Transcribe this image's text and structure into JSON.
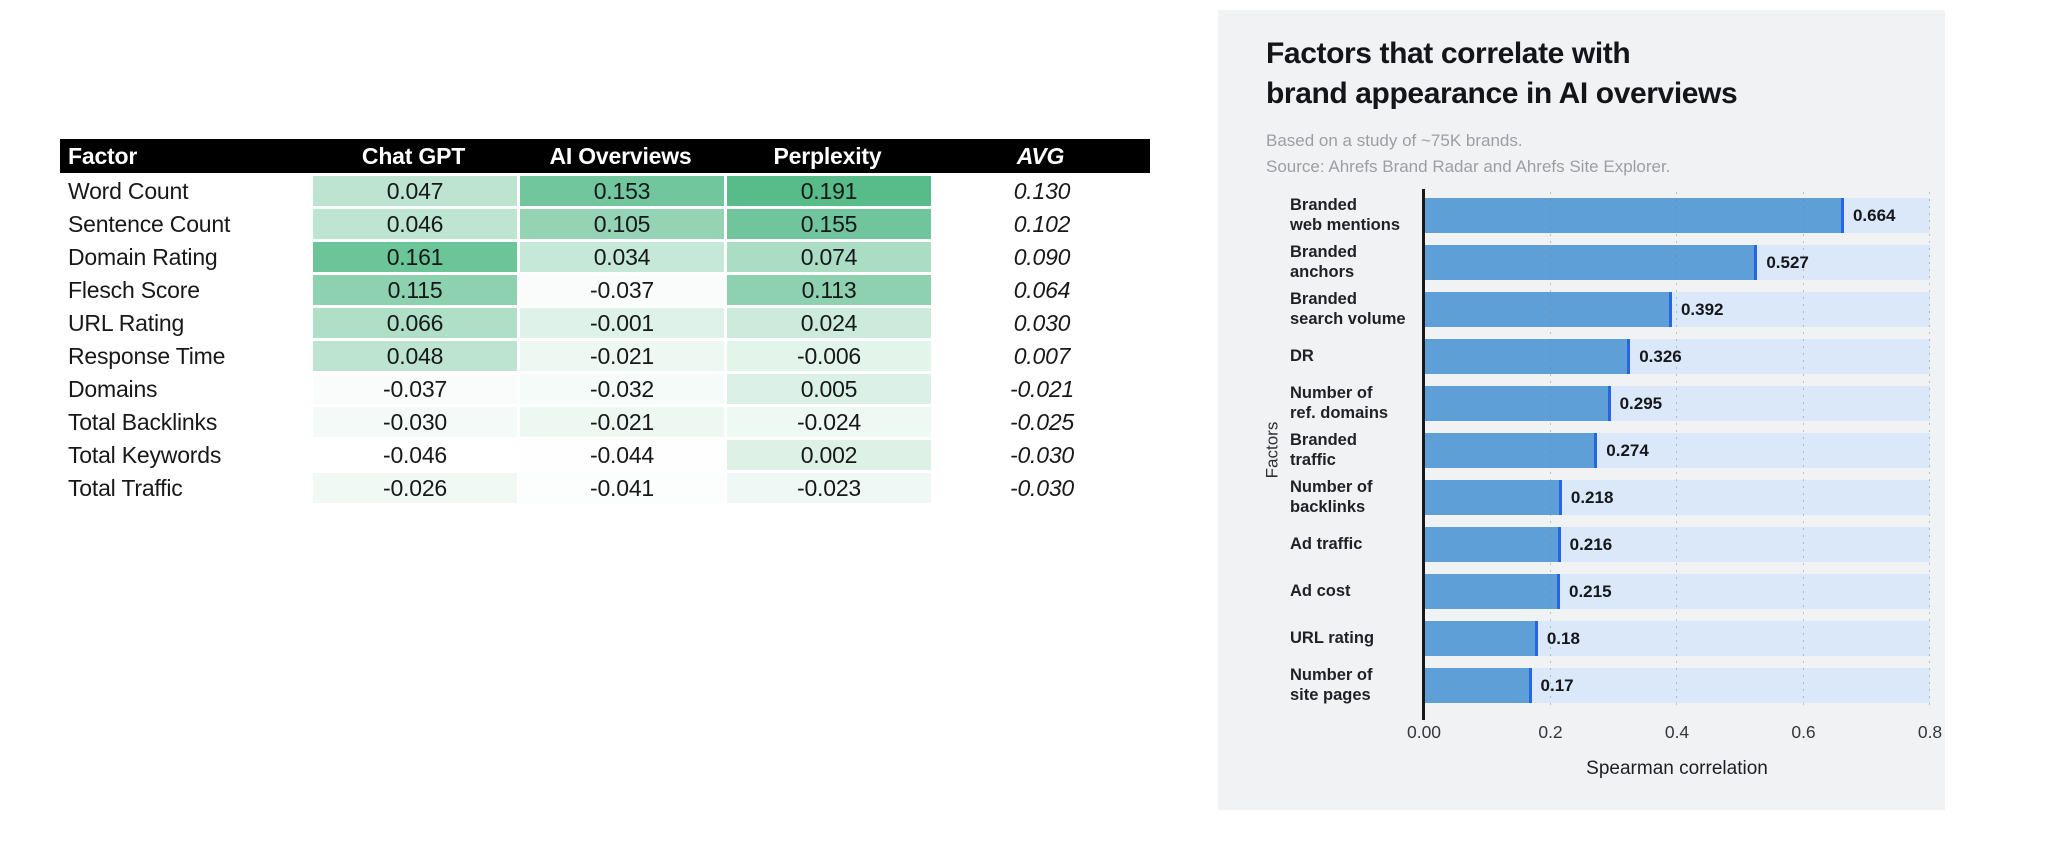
{
  "table": {
    "header": [
      "Factor",
      "Chat GPT",
      "AI Overviews",
      "Perplexity",
      "AVG"
    ],
    "rows": [
      [
        "Word Count",
        "0.047",
        "0.153",
        "0.191",
        "0.130"
      ],
      [
        "Sentence Count",
        "0.046",
        "0.105",
        "0.155",
        "0.102"
      ],
      [
        "Domain Rating",
        "0.161",
        "0.034",
        "0.074",
        "0.090"
      ],
      [
        "Flesch Score",
        "0.115",
        "-0.037",
        "0.113",
        "0.064"
      ],
      [
        "URL Rating",
        "0.066",
        "-0.001",
        "0.024",
        "0.030"
      ],
      [
        "Response Time",
        "0.048",
        "-0.021",
        "-0.006",
        "0.007"
      ],
      [
        "Domains",
        "-0.037",
        "-0.032",
        "0.005",
        "-0.021"
      ],
      [
        "Total Backlinks",
        "-0.030",
        "-0.021",
        "-0.024",
        "-0.025"
      ],
      [
        "Total Keywords",
        "-0.046",
        "-0.044",
        "0.002",
        "-0.030"
      ],
      [
        "Total Traffic",
        "-0.026",
        "-0.041",
        "-0.023",
        "-0.030"
      ]
    ],
    "heatmap": {
      "min": -0.046,
      "max": 0.191,
      "low_color": "#ffffff",
      "high_color": "#57bb8a"
    }
  },
  "chart": {
    "title_lines": [
      "Factors that correlate with",
      "brand appearance in AI overviews"
    ],
    "subtitle_lines": [
      "Based on a study of ~75K brands.",
      "Source: Ahrefs Brand Radar and Ahrefs Site Explorer."
    ],
    "ylabel": "Factors",
    "xlabel": "Spearman correlation",
    "xticks": [
      "0.00",
      "0.2",
      "0.4",
      "0.6",
      "0.8"
    ],
    "xmax": 0.8,
    "bars": [
      {
        "label_lines": [
          "Branded",
          "web mentions"
        ],
        "value": 0.664,
        "display": "0.664"
      },
      {
        "label_lines": [
          "Branded",
          "anchors"
        ],
        "value": 0.527,
        "display": "0.527"
      },
      {
        "label_lines": [
          "Branded",
          "search volume"
        ],
        "value": 0.392,
        "display": "0.392"
      },
      {
        "label_lines": [
          "DR"
        ],
        "value": 0.326,
        "display": "0.326"
      },
      {
        "label_lines": [
          "Number of",
          "ref. domains"
        ],
        "value": 0.295,
        "display": "0.295"
      },
      {
        "label_lines": [
          "Branded",
          "traffic"
        ],
        "value": 0.274,
        "display": "0.274"
      },
      {
        "label_lines": [
          "Number of",
          "backlinks"
        ],
        "value": 0.218,
        "display": "0.218"
      },
      {
        "label_lines": [
          "Ad traffic"
        ],
        "value": 0.216,
        "display": "0.216"
      },
      {
        "label_lines": [
          "Ad cost"
        ],
        "value": 0.215,
        "display": "0.215"
      },
      {
        "label_lines": [
          "URL rating"
        ],
        "value": 0.18,
        "display": "0.18"
      },
      {
        "label_lines": [
          "Number of",
          "site pages"
        ],
        "value": 0.17,
        "display": "0.17"
      }
    ],
    "colors": {
      "panel_bg": "#f1f2f4",
      "bar_fill": "#5f9fd8",
      "bar_edge": "#2765e3",
      "bar_track": "#dbe8f9",
      "axis": "#17181b"
    }
  },
  "chart_data": [
    {
      "type": "table",
      "title": "Correlation of factors with AI platforms",
      "columns": [
        "Factor",
        "Chat GPT",
        "AI Overviews",
        "Perplexity",
        "AVG"
      ],
      "rows": [
        [
          "Word Count",
          0.047,
          0.153,
          0.191,
          0.13
        ],
        [
          "Sentence Count",
          0.046,
          0.105,
          0.155,
          0.102
        ],
        [
          "Domain Rating",
          0.161,
          0.034,
          0.074,
          0.09
        ],
        [
          "Flesch Score",
          0.115,
          -0.037,
          0.113,
          0.064
        ],
        [
          "URL Rating",
          0.066,
          -0.001,
          0.024,
          0.03
        ],
        [
          "Response Time",
          0.048,
          -0.021,
          -0.006,
          0.007
        ],
        [
          "Domains",
          -0.037,
          -0.032,
          0.005,
          -0.021
        ],
        [
          "Total Backlinks",
          -0.03,
          -0.021,
          -0.024,
          -0.025
        ],
        [
          "Total Keywords",
          -0.046,
          -0.044,
          0.002,
          -0.03
        ],
        [
          "Total Traffic",
          -0.026,
          -0.041,
          -0.023,
          -0.03
        ]
      ],
      "style": "white-to-green heatmap on the three platform columns, AVG column italic on white"
    },
    {
      "type": "bar",
      "orientation": "horizontal",
      "title": "Factors that correlate with brand appearance in AI overviews",
      "subtitle": "Based on a study of ~75K brands. Source: Ahrefs Brand Radar and Ahrefs Site Explorer.",
      "categories": [
        "Branded web mentions",
        "Branded anchors",
        "Branded search volume",
        "DR",
        "Number of ref. domains",
        "Branded traffic",
        "Number of backlinks",
        "Ad traffic",
        "Ad cost",
        "URL rating",
        "Number of site pages"
      ],
      "values": [
        0.664,
        0.527,
        0.392,
        0.326,
        0.295,
        0.274,
        0.218,
        0.216,
        0.215,
        0.18,
        0.17
      ],
      "xlabel": "Spearman correlation",
      "ylabel": "Factors",
      "xlim": [
        0,
        0.8
      ],
      "xticks": [
        0.0,
        0.2,
        0.4,
        0.6,
        0.8
      ],
      "grid": "vertical dotted gridlines at each x tick",
      "legend": "none",
      "data_labels": "bold value printed right of each bar end"
    }
  ]
}
